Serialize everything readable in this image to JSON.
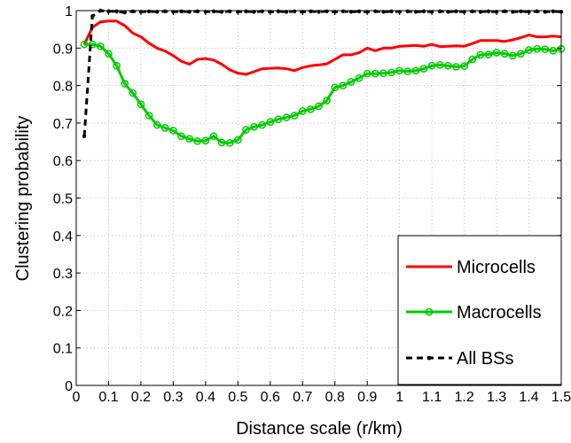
{
  "chart_data": {
    "type": "line",
    "title": "",
    "xlabel": "Distance scale (r/km)",
    "ylabel": "Clustering probability",
    "xlim": [
      0,
      1.5
    ],
    "ylim": [
      0,
      1
    ],
    "grid": true,
    "legend_position": "bottom-right",
    "xticks": [
      "0",
      "0.1",
      "0.2",
      "0.3",
      "0.4",
      "0.5",
      "0.6",
      "0.7",
      "0.8",
      "0.9",
      "1",
      "1.1",
      "1.2",
      "1.3",
      "1.4",
      "1.5"
    ],
    "yticks": [
      "0",
      "0.1",
      "0.2",
      "0.3",
      "0.4",
      "0.5",
      "0.6",
      "0.7",
      "0.8",
      "0.9",
      "1"
    ],
    "series": [
      {
        "name": "Microcells",
        "color": "#ff0000",
        "marker": "none",
        "dash": "solid",
        "x": [
          0.025,
          0.05,
          0.075,
          0.1,
          0.125,
          0.15,
          0.175,
          0.2,
          0.225,
          0.25,
          0.275,
          0.3,
          0.325,
          0.35,
          0.375,
          0.4,
          0.425,
          0.45,
          0.475,
          0.5,
          0.525,
          0.55,
          0.575,
          0.6,
          0.625,
          0.65,
          0.675,
          0.7,
          0.725,
          0.75,
          0.775,
          0.8,
          0.825,
          0.85,
          0.875,
          0.9,
          0.925,
          0.95,
          0.975,
          1.0,
          1.025,
          1.05,
          1.075,
          1.1,
          1.125,
          1.15,
          1.175,
          1.2,
          1.225,
          1.25,
          1.275,
          1.3,
          1.325,
          1.35,
          1.375,
          1.4,
          1.425,
          1.45,
          1.475,
          1.5
        ],
        "y": [
          0.91,
          0.955,
          0.97,
          0.972,
          0.972,
          0.96,
          0.94,
          0.93,
          0.913,
          0.9,
          0.892,
          0.88,
          0.865,
          0.857,
          0.87,
          0.872,
          0.868,
          0.857,
          0.842,
          0.833,
          0.83,
          0.837,
          0.845,
          0.846,
          0.847,
          0.845,
          0.84,
          0.848,
          0.853,
          0.855,
          0.858,
          0.87,
          0.882,
          0.882,
          0.888,
          0.9,
          0.893,
          0.9,
          0.9,
          0.905,
          0.906,
          0.907,
          0.905,
          0.91,
          0.904,
          0.905,
          0.906,
          0.905,
          0.912,
          0.92,
          0.92,
          0.92,
          0.918,
          0.922,
          0.928,
          0.935,
          0.93,
          0.93,
          0.932,
          0.93
        ]
      },
      {
        "name": "Macrocells",
        "color": "#00cc00",
        "marker": "circle",
        "dash": "solid",
        "x": [
          0.025,
          0.05,
          0.075,
          0.1,
          0.125,
          0.15,
          0.175,
          0.2,
          0.225,
          0.25,
          0.275,
          0.3,
          0.325,
          0.35,
          0.375,
          0.4,
          0.425,
          0.45,
          0.475,
          0.5,
          0.525,
          0.55,
          0.575,
          0.6,
          0.625,
          0.65,
          0.675,
          0.7,
          0.725,
          0.75,
          0.775,
          0.8,
          0.825,
          0.85,
          0.875,
          0.9,
          0.925,
          0.95,
          0.975,
          1.0,
          1.025,
          1.05,
          1.075,
          1.1,
          1.125,
          1.15,
          1.175,
          1.2,
          1.225,
          1.25,
          1.275,
          1.3,
          1.325,
          1.35,
          1.375,
          1.4,
          1.425,
          1.45,
          1.475,
          1.5
        ],
        "y": [
          0.91,
          0.91,
          0.905,
          0.885,
          0.853,
          0.805,
          0.78,
          0.75,
          0.72,
          0.695,
          0.687,
          0.68,
          0.665,
          0.658,
          0.652,
          0.653,
          0.665,
          0.648,
          0.647,
          0.655,
          0.682,
          0.69,
          0.695,
          0.703,
          0.71,
          0.715,
          0.72,
          0.732,
          0.737,
          0.745,
          0.76,
          0.795,
          0.8,
          0.81,
          0.82,
          0.832,
          0.832,
          0.833,
          0.835,
          0.84,
          0.838,
          0.84,
          0.845,
          0.853,
          0.855,
          0.853,
          0.85,
          0.852,
          0.87,
          0.882,
          0.883,
          0.888,
          0.885,
          0.88,
          0.885,
          0.895,
          0.898,
          0.897,
          0.893,
          0.898
        ]
      },
      {
        "name": "All BSs",
        "color": "#000000",
        "marker": "dot",
        "dash": "dashed",
        "x": [
          0.025,
          0.05,
          0.075,
          0.1,
          0.125,
          0.15,
          0.175,
          0.2,
          0.225,
          0.25,
          0.275,
          0.3,
          0.325,
          0.35,
          0.375,
          0.4,
          0.425,
          0.45,
          0.475,
          0.5,
          0.525,
          0.55,
          0.575,
          0.6,
          0.625,
          0.65,
          0.675,
          0.7,
          0.725,
          0.75,
          0.775,
          0.8,
          0.825,
          0.85,
          0.875,
          0.9,
          0.925,
          0.95,
          0.975,
          1.0,
          1.025,
          1.05,
          1.075,
          1.1,
          1.125,
          1.15,
          1.175,
          1.2,
          1.225,
          1.25,
          1.275,
          1.3,
          1.325,
          1.35,
          1.375,
          1.4,
          1.425,
          1.45,
          1.475,
          1.5
        ],
        "y": [
          0.665,
          0.985,
          1.0,
          0.998,
          0.998,
          0.995,
          0.998,
          0.997,
          0.998,
          0.997,
          0.998,
          0.997,
          0.998,
          0.997,
          0.998,
          0.997,
          0.998,
          0.997,
          0.998,
          0.997,
          0.998,
          0.997,
          0.998,
          0.997,
          0.998,
          0.997,
          0.998,
          0.997,
          0.998,
          0.997,
          0.998,
          0.997,
          0.998,
          0.997,
          0.998,
          0.997,
          0.998,
          0.997,
          0.998,
          0.997,
          0.998,
          0.997,
          0.998,
          0.997,
          0.998,
          0.997,
          0.998,
          0.997,
          0.998,
          0.997,
          0.998,
          0.997,
          0.998,
          0.997,
          0.998,
          0.997,
          0.998,
          0.997,
          0.998,
          0.997
        ]
      }
    ]
  }
}
